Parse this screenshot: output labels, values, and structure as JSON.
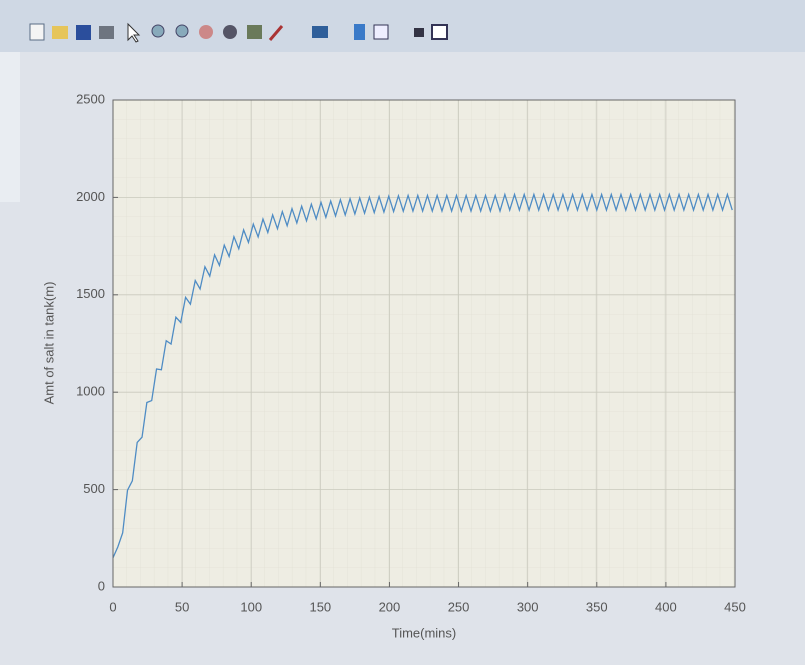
{
  "chart_data": {
    "type": "line",
    "xlabel": "Time(mins)",
    "ylabel": "Amt of salt in tank(m)",
    "color": "#4f8cc4",
    "grid": true,
    "xlim": [
      0,
      450
    ],
    "xticks": [
      0,
      50,
      100,
      150,
      200,
      250,
      300,
      350,
      400,
      450
    ],
    "ylim": [
      0,
      2500
    ],
    "yticks": [
      0,
      500,
      1000,
      1500,
      2000,
      2500
    ],
    "x": [
      0,
      3.5,
      7,
      10.5,
      14,
      17.5,
      21,
      24.5,
      28,
      31.5,
      35,
      38.5,
      42,
      45.5,
      49,
      52.5,
      56,
      59.5,
      63,
      66.5,
      70,
      73.5,
      77,
      80.5,
      84,
      87.5,
      91,
      94.5,
      98,
      101.5,
      105,
      108.5,
      112,
      115.5,
      119,
      122.5,
      126,
      129.5,
      133,
      136.5,
      140,
      143.5,
      147,
      150.5,
      154,
      157.5,
      161,
      164.5,
      168,
      171.5,
      175,
      178.5,
      182,
      185.5,
      189,
      192.5,
      196,
      199.5,
      203,
      206.5,
      210,
      213.5,
      217,
      220.5,
      224,
      227.5,
      231,
      234.5,
      238,
      241.5,
      245,
      248.5,
      252,
      255.5,
      259,
      262.5,
      266,
      269.5,
      273,
      276.5,
      280,
      283.5,
      287,
      290.5,
      294,
      297.5,
      301,
      304.5,
      308,
      311.5,
      315,
      318.5,
      322,
      325.5,
      329,
      332.5,
      336,
      339.5,
      343,
      346.5,
      350,
      353.5,
      357,
      360.5,
      364,
      367.5,
      371,
      374.5,
      378,
      381.5,
      385,
      388.5,
      392,
      395.5,
      399,
      402.5,
      406,
      409.5,
      413,
      416.5,
      420,
      423.5,
      427,
      430.5,
      434,
      437.5,
      441,
      444.5,
      448
    ],
    "values": [
      150,
      206,
      278,
      497,
      545,
      742,
      769,
      947,
      957,
      1119,
      1115,
      1264,
      1247,
      1385,
      1358,
      1487,
      1452,
      1573,
      1530,
      1644,
      1596,
      1705,
      1651,
      1755,
      1697,
      1798,
      1736,
      1833,
      1769,
      1863,
      1797,
      1889,
      1820,
      1910,
      1839,
      1927,
      1855,
      1942,
      1869,
      1955,
      1880,
      1965,
      1890,
      1974,
      1898,
      1981,
      1905,
      1988,
      1910,
      1993,
      1915,
      1997,
      1919,
      2001,
      1922,
      2004,
      1925,
      2006,
      1927,
      2008,
      1929,
      2010,
      1930,
      2010,
      1930,
      2010,
      1930,
      2010,
      1930,
      2010,
      1930,
      2010,
      1930,
      2010,
      1930,
      2010,
      1930,
      2010,
      1930,
      2010,
      1930,
      2015,
      1935,
      2015,
      1935,
      2015,
      1935,
      2015,
      1935,
      2015,
      1935,
      2015,
      1935,
      2015,
      1935,
      2015,
      1935,
      2015,
      1935,
      2015,
      1935,
      2015,
      1935,
      2015,
      1935,
      2015,
      1935,
      2015,
      1935,
      2015,
      1935,
      2015,
      1935,
      2015,
      1935,
      2015,
      1935,
      2015,
      1935,
      2015,
      1935,
      2015,
      1935,
      2015,
      1935,
      2015,
      1935,
      2015,
      1935
    ]
  }
}
